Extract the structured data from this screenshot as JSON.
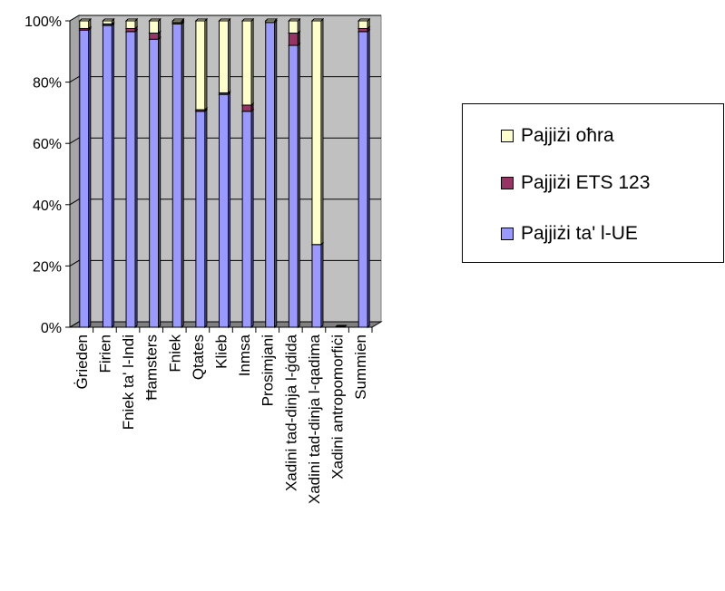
{
  "chart_data": {
    "type": "bar",
    "stacked": "percent",
    "categories": [
      "Ġrieden",
      "Firien",
      "Fniek ta' l-Indi",
      "Ħamsters",
      "Fniek",
      "Qtates",
      "Klieb",
      "Inmsa",
      "Prosimjani",
      "Xadini tad-dinja l-ġdida",
      "Xadini tad-dinja l-qadima",
      "Xadini antropomorfiċi",
      "Summien"
    ],
    "series": [
      {
        "name": "Pajjiżi ta' l-UE",
        "color": "#9999ff",
        "values": [
          97,
          98.5,
          96.5,
          94,
          99,
          70.5,
          76,
          70.5,
          99.5,
          92,
          27,
          0,
          96.5
        ]
      },
      {
        "name": "Pajjiżi ETS 123",
        "color": "#993366",
        "values": [
          0.5,
          0.5,
          1,
          2,
          0.5,
          0.5,
          0.5,
          2,
          0,
          4,
          0,
          0,
          1
        ]
      },
      {
        "name": "Pajjiżi oħra",
        "color": "#ffffcc",
        "values": [
          2.5,
          1,
          2.5,
          4,
          0.5,
          29,
          23.5,
          27.5,
          0.5,
          4,
          73,
          0,
          2.5
        ]
      }
    ],
    "yticks": [
      "0%",
      "20%",
      "40%",
      "60%",
      "80%",
      "100%"
    ],
    "ylim": [
      0,
      100
    ],
    "grid": true,
    "legend_position": "right",
    "plot_background": "#c0c0c0"
  },
  "legend": {
    "items": [
      {
        "label": "Pajjiżi oħra",
        "color": "#ffffcc"
      },
      {
        "label": "Pajjiżi ETS 123",
        "color": "#993366"
      },
      {
        "label": "Pajjiżi ta' l-UE",
        "color": "#9999ff"
      }
    ]
  }
}
